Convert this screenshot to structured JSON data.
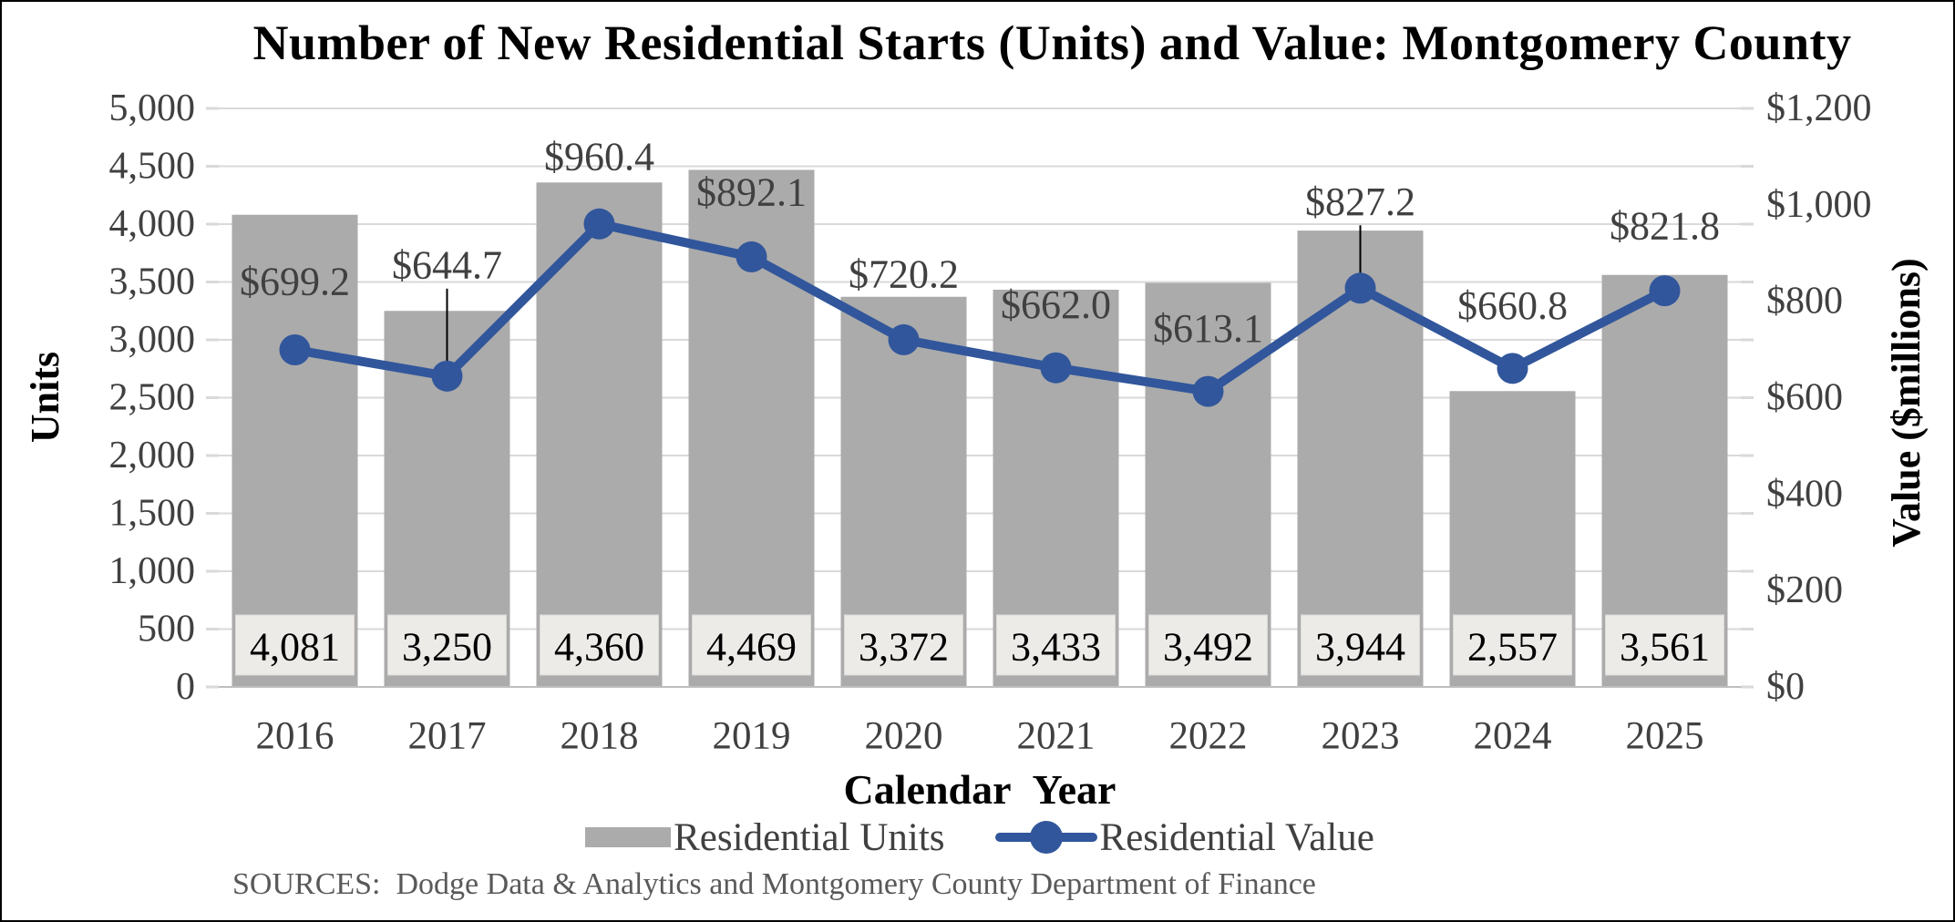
{
  "title": "Number of New Residential Starts (Units) and Value: Montgomery County",
  "axes": {
    "left": {
      "title": "Units"
    },
    "right": {
      "title": "Value ($millions)"
    },
    "x": {
      "title": "Calendar Year"
    }
  },
  "legend": {
    "units_label": "Residential Units",
    "value_label": "Residential Value"
  },
  "source_note": "SOURCES:  Dodge Data & Analytics and Montgomery County Department of Finance",
  "colors": {
    "bar": "#ABABAB",
    "line": "#31569B",
    "grid": "#D9D9D9",
    "axis_line": "#BFBFBF",
    "tick_text": "#404040",
    "bar_label_box_bg": "#EDEBE8",
    "bar_label_box_border": "#DBD9D6",
    "leader_line": "#000000"
  },
  "chart_data": {
    "type": "bar",
    "title": "Number of New Residential Starts (Units) and Value: Montgomery County",
    "categories": [
      "2016",
      "2017",
      "2018",
      "2019",
      "2020",
      "2021",
      "2022",
      "2023",
      "2024",
      "2025"
    ],
    "series": [
      {
        "name": "Residential Units",
        "type": "bar",
        "axis": "left",
        "color": "#ABABAB",
        "values": [
          4081,
          3250,
          4360,
          4469,
          3372,
          3433,
          3492,
          3944,
          2557,
          3561
        ],
        "labels": [
          "4,081",
          "3,250",
          "4,360",
          "4,469",
          "3,372",
          "3,433",
          "3,492",
          "3,944",
          "2,557",
          "3,561"
        ]
      },
      {
        "name": "Residential Value",
        "type": "line",
        "axis": "right",
        "color": "#31569B",
        "values": [
          699.2,
          644.7,
          960.4,
          892.1,
          720.2,
          662.0,
          613.1,
          827.2,
          660.8,
          821.8
        ],
        "labels": [
          "$699.2",
          "$644.7",
          "$960.4",
          "$892.1",
          "$720.2",
          "$662.0",
          "$613.1",
          "$827.2",
          "$660.8",
          "$821.8"
        ]
      }
    ],
    "xlabel": "Calendar Year",
    "ylabel_left": "Units",
    "ylabel_right": "Value ($millions)",
    "ylim_left": [
      0,
      5000
    ],
    "ylim_right": [
      0,
      1200
    ],
    "yticks_left": [
      "0",
      "500",
      "1,000",
      "1,500",
      "2,000",
      "2,500",
      "3,000",
      "3,500",
      "4,000",
      "4,500",
      "5,000"
    ],
    "yticks_right": [
      "$0",
      "$200",
      "$400",
      "$600",
      "$800",
      "$1,000",
      "$1,200"
    ],
    "grid": true,
    "legend_position": "bottom",
    "value_label_dy": [
      -75,
      -122,
      -74,
      -71,
      -72,
      -69,
      -69,
      -95,
      -69,
      -71
    ],
    "value_label_leader_indices": [
      1,
      7
    ]
  }
}
